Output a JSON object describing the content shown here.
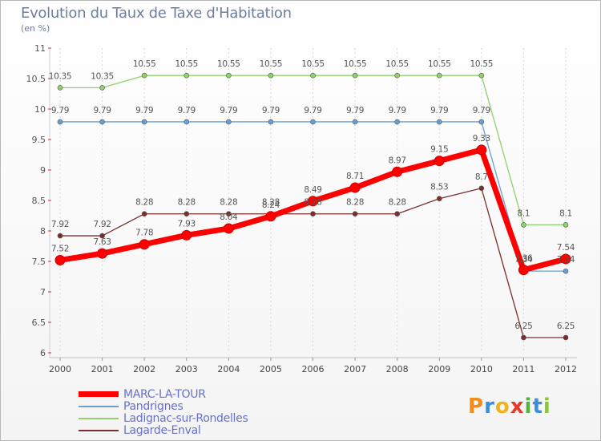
{
  "header": {
    "title": "Evolution du Taux de Taxe d'Habitation",
    "subtitle": "(en %)"
  },
  "brand": {
    "letters": [
      "P",
      "r",
      "o",
      "x",
      "i",
      "t",
      "i"
    ],
    "colors": [
      "#f28c1e",
      "#3a8fd9",
      "#f2b21e",
      "#e33a2b",
      "#4fb33c",
      "#3a8fd9",
      "#8cc63f"
    ]
  },
  "chart_data": {
    "type": "line",
    "title": "Evolution du Taux de Taxe d'Habitation",
    "ylabel": "(en %)",
    "xlabel": "",
    "x": [
      2000,
      2001,
      2002,
      2003,
      2004,
      2005,
      2006,
      2007,
      2008,
      2009,
      2010,
      2011,
      2012
    ],
    "ylim": [
      6,
      11
    ],
    "yticks": [
      6,
      6.5,
      7,
      7.5,
      8,
      8.5,
      9,
      9.5,
      10,
      10.5,
      11
    ],
    "yticks_labels": [
      "6",
      "6.5",
      "7",
      "7.5",
      "8",
      "8.5",
      "9",
      "9.5",
      "10",
      "10.5",
      "11"
    ],
    "grid": "vertical",
    "legend": "bottom-left",
    "series": [
      {
        "name": "MARC-LA-TOUR",
        "color": "#ff0000",
        "values": [
          7.52,
          7.63,
          7.78,
          7.93,
          8.04,
          8.24,
          8.49,
          8.71,
          8.97,
          9.15,
          9.33,
          7.36,
          7.54
        ],
        "labels": [
          "7.52",
          "7.63",
          "7.78",
          "7.93",
          "8.04",
          "8.24",
          "8.49",
          "8.71",
          "8.97",
          "9.15",
          "9.33",
          "7.36",
          "7.54"
        ]
      },
      {
        "name": "Pandrignes",
        "color": "#6b9fd1",
        "values": [
          9.79,
          9.79,
          9.79,
          9.79,
          9.79,
          9.79,
          9.79,
          9.79,
          9.79,
          9.79,
          9.79,
          7.34,
          7.34
        ],
        "labels": [
          "9.79",
          "9.79",
          "9.79",
          "9.79",
          "9.79",
          "9.79",
          "9.79",
          "9.79",
          "9.79",
          "9.79",
          "9.79",
          "7.34",
          "7.34"
        ]
      },
      {
        "name": "Ladignac-sur-Rondelles",
        "color": "#8fd16a",
        "values": [
          10.35,
          10.35,
          10.55,
          10.55,
          10.55,
          10.55,
          10.55,
          10.55,
          10.55,
          10.55,
          10.55,
          8.1,
          8.1
        ],
        "labels": [
          "10.35",
          "10.35",
          "10.55",
          "10.55",
          "10.55",
          "10.55",
          "10.55",
          "10.55",
          "10.55",
          "10.55",
          "10.55",
          "8.1",
          "8.1"
        ]
      },
      {
        "name": "Lagarde-Enval",
        "color": "#7a2e2e",
        "values": [
          7.92,
          7.92,
          8.28,
          8.28,
          8.28,
          8.28,
          8.28,
          8.28,
          8.28,
          8.53,
          8.7,
          6.25,
          6.25
        ],
        "labels": [
          "7.92",
          "7.92",
          "8.28",
          "8.28",
          "8.28",
          "8.28",
          "8.28",
          "8.28",
          "8.28",
          "8.53",
          "8.7",
          "6.25",
          "6.25"
        ]
      }
    ]
  }
}
